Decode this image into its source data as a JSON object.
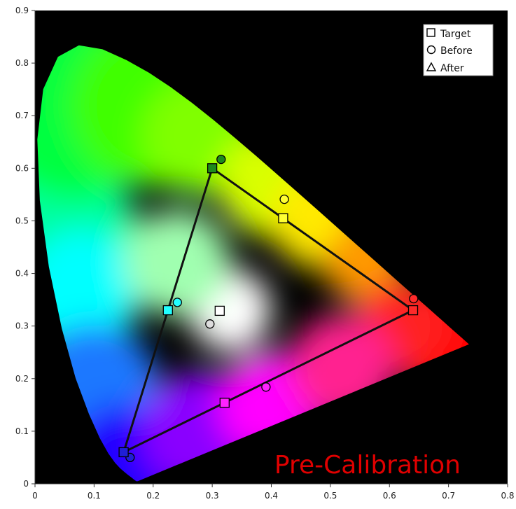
{
  "chart_data": {
    "type": "scatter",
    "title": "",
    "xlabel": "",
    "ylabel": "",
    "xlim": [
      0,
      0.8
    ],
    "ylim": [
      0,
      0.9
    ],
    "x_ticks": [
      "0",
      "0.1",
      "0.2",
      "0.3",
      "0.4",
      "0.5",
      "0.6",
      "0.7",
      "0.8"
    ],
    "y_ticks": [
      "0",
      "0.1",
      "0.2",
      "0.3",
      "0.4",
      "0.5",
      "0.6",
      "0.7",
      "0.8",
      "0.9"
    ],
    "grid": false,
    "background": "#000000",
    "spectral_locus": [
      [
        0.1741,
        0.005
      ],
      [
        0.1738,
        0.0049
      ],
      [
        0.1736,
        0.0049
      ],
      [
        0.1733,
        0.0048
      ],
      [
        0.173,
        0.0048
      ],
      [
        0.1726,
        0.0048
      ],
      [
        0.1721,
        0.0048
      ],
      [
        0.1714,
        0.0051
      ],
      [
        0.1703,
        0.0058
      ],
      [
        0.1689,
        0.0069
      ],
      [
        0.1669,
        0.0086
      ],
      [
        0.1644,
        0.0109
      ],
      [
        0.1611,
        0.0138
      ],
      [
        0.1566,
        0.0177
      ],
      [
        0.151,
        0.0227
      ],
      [
        0.144,
        0.0297
      ],
      [
        0.1355,
        0.0399
      ],
      [
        0.1241,
        0.0578
      ],
      [
        0.1096,
        0.0868
      ],
      [
        0.0913,
        0.1327
      ],
      [
        0.0687,
        0.2007
      ],
      [
        0.0454,
        0.295
      ],
      [
        0.0235,
        0.4127
      ],
      [
        0.0082,
        0.5384
      ],
      [
        0.0039,
        0.6548
      ],
      [
        0.0139,
        0.7502
      ],
      [
        0.0389,
        0.812
      ],
      [
        0.0743,
        0.8338
      ],
      [
        0.1142,
        0.8262
      ],
      [
        0.1547,
        0.8059
      ],
      [
        0.1929,
        0.7816
      ],
      [
        0.2296,
        0.7543
      ],
      [
        0.2658,
        0.7243
      ],
      [
        0.3016,
        0.6923
      ],
      [
        0.3373,
        0.6589
      ],
      [
        0.3731,
        0.6245
      ],
      [
        0.4087,
        0.5896
      ],
      [
        0.4441,
        0.5547
      ],
      [
        0.4788,
        0.5202
      ],
      [
        0.5125,
        0.4866
      ],
      [
        0.5448,
        0.4544
      ],
      [
        0.5752,
        0.4242
      ],
      [
        0.6029,
        0.3965
      ],
      [
        0.627,
        0.3725
      ],
      [
        0.6482,
        0.3514
      ],
      [
        0.6658,
        0.334
      ],
      [
        0.6801,
        0.3197
      ],
      [
        0.6915,
        0.3083
      ],
      [
        0.7006,
        0.2993
      ],
      [
        0.7079,
        0.292
      ],
      [
        0.714,
        0.2859
      ],
      [
        0.719,
        0.2809
      ],
      [
        0.723,
        0.277
      ],
      [
        0.726,
        0.274
      ],
      [
        0.7283,
        0.2717
      ],
      [
        0.73,
        0.27
      ],
      [
        0.7311,
        0.2689
      ],
      [
        0.732,
        0.268
      ],
      [
        0.7327,
        0.2673
      ],
      [
        0.7334,
        0.2666
      ],
      [
        0.734,
        0.266
      ],
      [
        0.7344,
        0.2656
      ],
      [
        0.7346,
        0.2654
      ],
      [
        0.7347,
        0.2653
      ]
    ],
    "target_gamut": [
      [
        0.3,
        0.6
      ],
      [
        0.64,
        0.33
      ],
      [
        0.15,
        0.06
      ]
    ],
    "series": [
      {
        "name": "Target",
        "marker": "square",
        "points": [
          {
            "x": 0.3,
            "y": 0.6,
            "color": "#1d8a1d"
          },
          {
            "x": 0.42,
            "y": 0.505,
            "color": "#ffff33"
          },
          {
            "x": 0.64,
            "y": 0.33,
            "color": "#ff2a2a"
          },
          {
            "x": 0.321,
            "y": 0.154,
            "color": "#ff22ff"
          },
          {
            "x": 0.15,
            "y": 0.06,
            "color": "#1f1fd6"
          },
          {
            "x": 0.225,
            "y": 0.33,
            "color": "#22ffff"
          },
          {
            "x": 0.3127,
            "y": 0.329,
            "color": "#ffffff"
          }
        ]
      },
      {
        "name": "Before",
        "marker": "circle",
        "points": [
          {
            "x": 0.315,
            "y": 0.617,
            "color": "#1d8a1d"
          },
          {
            "x": 0.422,
            "y": 0.541,
            "color": "#ffff33"
          },
          {
            "x": 0.641,
            "y": 0.352,
            "color": "#ff2a2a"
          },
          {
            "x": 0.391,
            "y": 0.184,
            "color": "#ff22ff"
          },
          {
            "x": 0.161,
            "y": 0.05,
            "color": "#1f1fd6"
          },
          {
            "x": 0.241,
            "y": 0.345,
            "color": "#22ffff"
          },
          {
            "x": 0.296,
            "y": 0.304,
            "color": "#dddddd"
          }
        ]
      },
      {
        "name": "After",
        "marker": "triangle",
        "points": []
      }
    ],
    "legend": {
      "placement": "top-right",
      "items": [
        {
          "marker": "square",
          "label": "Target"
        },
        {
          "marker": "circle",
          "label": "Before"
        },
        {
          "marker": "triangle",
          "label": "After"
        }
      ]
    },
    "annotation": {
      "text": "Pre-Calibration",
      "color": "#e00000"
    }
  }
}
